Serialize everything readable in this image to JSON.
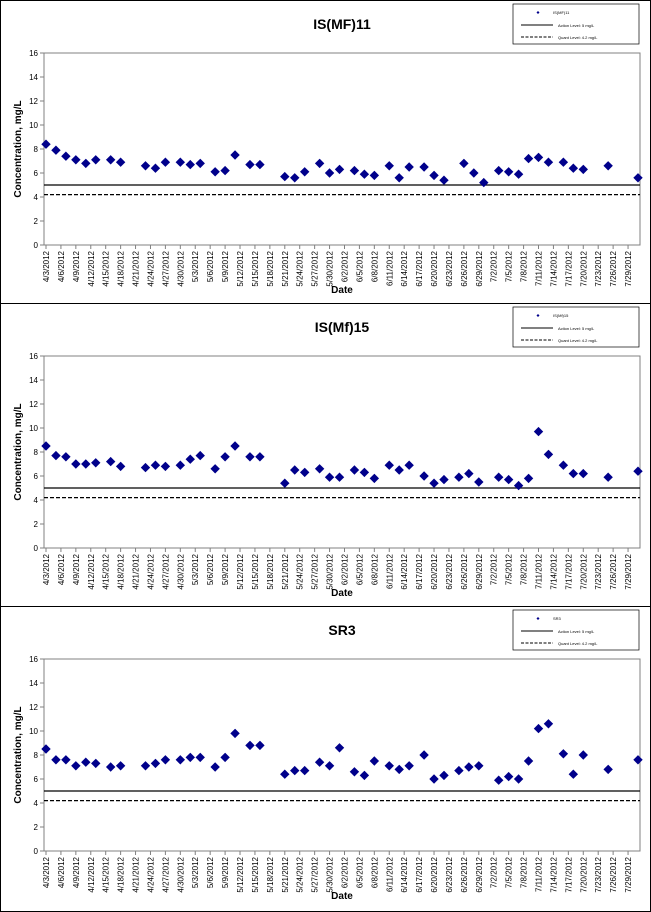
{
  "colors": {
    "marker": "#00008B",
    "line": "#000000",
    "axis": "#808080"
  },
  "chart_data": [
    {
      "type": "scatter",
      "title": "IS(MF)11",
      "xlabel": "Date",
      "ylabel": "Concentration, mg/L",
      "ylim": [
        0,
        16
      ],
      "yticks": [
        "0",
        "2",
        "4",
        "6",
        "8",
        "10",
        "12",
        "14",
        "16"
      ],
      "xlim": [
        "4/3/2012",
        "7/31/2012"
      ],
      "xtick_labels": [
        "4/3/2012",
        "4/6/2012",
        "4/9/2012",
        "4/12/2012",
        "4/15/2012",
        "4/18/2012",
        "4/21/2012",
        "4/24/2012",
        "4/27/2012",
        "4/30/2012",
        "5/3/2012",
        "5/6/2012",
        "5/9/2012",
        "5/12/2012",
        "5/15/2012",
        "5/18/2012",
        "5/21/2012",
        "5/24/2012",
        "5/27/2012",
        "5/30/2012",
        "6/2/2012",
        "6/5/2012",
        "6/8/2012",
        "6/11/2012",
        "6/14/2012",
        "6/17/2012",
        "6/20/2012",
        "6/23/2012",
        "6/26/2012",
        "6/29/2012",
        "7/2/2012",
        "7/5/2012",
        "7/8/2012",
        "7/11/2012",
        "7/14/2012",
        "7/17/2012",
        "7/20/2012",
        "7/23/2012",
        "7/26/2012",
        "7/29/2012"
      ],
      "legend": [
        "IS(MF)11",
        "Action Level: 5 mg/L",
        "Quant Level: 4.2 mg/L"
      ],
      "legend_position": "top-right",
      "lines": [
        {
          "name": "Action Level: 5 mg/L",
          "y": 5,
          "style": "solid"
        },
        {
          "name": "Quant Level: 4.2 mg/L",
          "y": 4.2,
          "style": "dashed"
        }
      ],
      "series": [
        {
          "name": "IS(MF)11",
          "points": [
            [
              "4/3/2012",
              8.4
            ],
            [
              "4/5/2012",
              7.9
            ],
            [
              "4/7/2012",
              7.4
            ],
            [
              "4/9/2012",
              7.1
            ],
            [
              "4/11/2012",
              6.8
            ],
            [
              "4/13/2012",
              7.1
            ],
            [
              "4/16/2012",
              7.1
            ],
            [
              "4/18/2012",
              6.9
            ],
            [
              "4/23/2012",
              6.6
            ],
            [
              "4/25/2012",
              6.4
            ],
            [
              "4/27/2012",
              6.9
            ],
            [
              "4/30/2012",
              6.9
            ],
            [
              "5/2/2012",
              6.7
            ],
            [
              "5/4/2012",
              6.8
            ],
            [
              "5/7/2012",
              6.1
            ],
            [
              "5/9/2012",
              6.2
            ],
            [
              "5/11/2012",
              7.5
            ],
            [
              "5/14/2012",
              6.7
            ],
            [
              "5/16/2012",
              6.7
            ],
            [
              "5/21/2012",
              5.7
            ],
            [
              "5/23/2012",
              5.6
            ],
            [
              "5/25/2012",
              6.1
            ],
            [
              "5/28/2012",
              6.8
            ],
            [
              "5/30/2012",
              6.0
            ],
            [
              "6/1/2012",
              6.3
            ],
            [
              "6/4/2012",
              6.2
            ],
            [
              "6/6/2012",
              5.9
            ],
            [
              "6/8/2012",
              5.8
            ],
            [
              "6/11/2012",
              6.6
            ],
            [
              "6/13/2012",
              5.6
            ],
            [
              "6/15/2012",
              6.5
            ],
            [
              "6/18/2012",
              6.5
            ],
            [
              "6/20/2012",
              5.8
            ],
            [
              "6/22/2012",
              5.4
            ],
            [
              "6/26/2012",
              6.8
            ],
            [
              "6/28/2012",
              6.0
            ],
            [
              "6/30/2012",
              5.2
            ],
            [
              "7/3/2012",
              6.2
            ],
            [
              "7/5/2012",
              6.1
            ],
            [
              "7/7/2012",
              5.9
            ],
            [
              "7/9/2012",
              7.2
            ],
            [
              "7/11/2012",
              7.3
            ],
            [
              "7/13/2012",
              6.9
            ],
            [
              "7/16/2012",
              6.9
            ],
            [
              "7/18/2012",
              6.4
            ],
            [
              "7/20/2012",
              6.3
            ],
            [
              "7/25/2012",
              6.6
            ],
            [
              "7/31/2012",
              5.6
            ]
          ]
        }
      ]
    },
    {
      "type": "scatter",
      "title": "IS(Mf)15",
      "xlabel": "Date",
      "ylabel": "Concentration, mg/L",
      "ylim": [
        0,
        16
      ],
      "yticks": [
        "0",
        "2",
        "4",
        "6",
        "8",
        "10",
        "12",
        "14",
        "16"
      ],
      "xlim": [
        "4/3/2012",
        "7/31/2012"
      ],
      "xtick_labels": [
        "4/3/2012",
        "4/6/2012",
        "4/9/2012",
        "4/12/2012",
        "4/15/2012",
        "4/18/2012",
        "4/21/2012",
        "4/24/2012",
        "4/27/2012",
        "4/30/2012",
        "5/3/2012",
        "5/6/2012",
        "5/9/2012",
        "5/12/2012",
        "5/15/2012",
        "5/18/2012",
        "5/21/2012",
        "5/24/2012",
        "5/27/2012",
        "5/30/2012",
        "6/2/2012",
        "6/5/2012",
        "6/8/2012",
        "6/11/2012",
        "6/14/2012",
        "6/17/2012",
        "6/20/2012",
        "6/23/2012",
        "6/26/2012",
        "6/29/2012",
        "7/2/2012",
        "7/5/2012",
        "7/8/2012",
        "7/11/2012",
        "7/14/2012",
        "7/17/2012",
        "7/20/2012",
        "7/23/2012",
        "7/26/2012",
        "7/29/2012"
      ],
      "legend": [
        "IS(Mf)15",
        "Action Level: 5 mg/L",
        "Quant Level: 4.2 mg/L"
      ],
      "legend_position": "top-right",
      "lines": [
        {
          "name": "Action Level: 5 mg/L",
          "y": 5,
          "style": "solid"
        },
        {
          "name": "Quant Level: 4.2 mg/L",
          "y": 4.2,
          "style": "dashed"
        }
      ],
      "series": [
        {
          "name": "IS(Mf)15",
          "points": [
            [
              "4/3/2012",
              8.5
            ],
            [
              "4/5/2012",
              7.7
            ],
            [
              "4/7/2012",
              7.6
            ],
            [
              "4/9/2012",
              7.0
            ],
            [
              "4/11/2012",
              7.0
            ],
            [
              "4/13/2012",
              7.1
            ],
            [
              "4/16/2012",
              7.2
            ],
            [
              "4/18/2012",
              6.8
            ],
            [
              "4/23/2012",
              6.7
            ],
            [
              "4/25/2012",
              6.9
            ],
            [
              "4/27/2012",
              6.8
            ],
            [
              "4/30/2012",
              6.9
            ],
            [
              "5/2/2012",
              7.4
            ],
            [
              "5/4/2012",
              7.7
            ],
            [
              "5/7/2012",
              6.6
            ],
            [
              "5/9/2012",
              7.6
            ],
            [
              "5/11/2012",
              8.5
            ],
            [
              "5/14/2012",
              7.6
            ],
            [
              "5/16/2012",
              7.6
            ],
            [
              "5/21/2012",
              5.4
            ],
            [
              "5/23/2012",
              6.5
            ],
            [
              "5/25/2012",
              6.3
            ],
            [
              "5/28/2012",
              6.6
            ],
            [
              "5/30/2012",
              5.9
            ],
            [
              "6/1/2012",
              5.9
            ],
            [
              "6/4/2012",
              6.5
            ],
            [
              "6/6/2012",
              6.3
            ],
            [
              "6/8/2012",
              5.8
            ],
            [
              "6/11/2012",
              6.9
            ],
            [
              "6/13/2012",
              6.5
            ],
            [
              "6/15/2012",
              6.9
            ],
            [
              "6/18/2012",
              6.0
            ],
            [
              "6/20/2012",
              5.4
            ],
            [
              "6/22/2012",
              5.7
            ],
            [
              "6/25/2012",
              5.9
            ],
            [
              "6/27/2012",
              6.2
            ],
            [
              "6/29/2012",
              5.5
            ],
            [
              "7/3/2012",
              5.9
            ],
            [
              "7/5/2012",
              5.7
            ],
            [
              "7/7/2012",
              5.2
            ],
            [
              "7/9/2012",
              5.8
            ],
            [
              "7/11/2012",
              9.7
            ],
            [
              "7/13/2012",
              7.8
            ],
            [
              "7/16/2012",
              6.9
            ],
            [
              "7/18/2012",
              6.2
            ],
            [
              "7/20/2012",
              6.2
            ],
            [
              "7/25/2012",
              5.9
            ],
            [
              "7/31/2012",
              6.4
            ]
          ]
        }
      ]
    },
    {
      "type": "scatter",
      "title": "SR3",
      "xlabel": "Date",
      "ylabel": "Concentration, mg/L",
      "ylim": [
        0,
        16
      ],
      "yticks": [
        "0",
        "2",
        "4",
        "6",
        "8",
        "10",
        "12",
        "14",
        "16"
      ],
      "xlim": [
        "4/3/2012",
        "7/31/2012"
      ],
      "xtick_labels": [
        "4/3/2012",
        "4/6/2012",
        "4/9/2012",
        "4/12/2012",
        "4/15/2012",
        "4/18/2012",
        "4/21/2012",
        "4/24/2012",
        "4/27/2012",
        "4/30/2012",
        "5/3/2012",
        "5/6/2012",
        "5/9/2012",
        "5/12/2012",
        "5/15/2012",
        "5/18/2012",
        "5/21/2012",
        "5/24/2012",
        "5/27/2012",
        "5/30/2012",
        "6/2/2012",
        "6/5/2012",
        "6/8/2012",
        "6/11/2012",
        "6/14/2012",
        "6/17/2012",
        "6/20/2012",
        "6/23/2012",
        "6/26/2012",
        "6/29/2012",
        "7/2/2012",
        "7/5/2012",
        "7/8/2012",
        "7/11/2012",
        "7/14/2012",
        "7/17/2012",
        "7/20/2012",
        "7/23/2012",
        "7/26/2012",
        "7/29/2012"
      ],
      "legend": [
        "SR3",
        "Action Level: 5 mg/L",
        "Quant Level: 4.2 mg/L"
      ],
      "legend_position": "top-right",
      "lines": [
        {
          "name": "Action Level: 5 mg/L",
          "y": 5,
          "style": "solid"
        },
        {
          "name": "Quant Level: 4.2 mg/L",
          "y": 4.2,
          "style": "dashed"
        }
      ],
      "series": [
        {
          "name": "SR3",
          "points": [
            [
              "4/3/2012",
              8.5
            ],
            [
              "4/5/2012",
              7.6
            ],
            [
              "4/7/2012",
              7.6
            ],
            [
              "4/9/2012",
              7.1
            ],
            [
              "4/11/2012",
              7.4
            ],
            [
              "4/13/2012",
              7.3
            ],
            [
              "4/16/2012",
              7.0
            ],
            [
              "4/18/2012",
              7.1
            ],
            [
              "4/23/2012",
              7.1
            ],
            [
              "4/25/2012",
              7.3
            ],
            [
              "4/27/2012",
              7.6
            ],
            [
              "4/30/2012",
              7.6
            ],
            [
              "5/2/2012",
              7.8
            ],
            [
              "5/4/2012",
              7.8
            ],
            [
              "5/7/2012",
              7.0
            ],
            [
              "5/9/2012",
              7.8
            ],
            [
              "5/11/2012",
              9.8
            ],
            [
              "5/14/2012",
              8.8
            ],
            [
              "5/16/2012",
              8.8
            ],
            [
              "5/21/2012",
              6.4
            ],
            [
              "5/23/2012",
              6.7
            ],
            [
              "5/25/2012",
              6.7
            ],
            [
              "5/28/2012",
              7.4
            ],
            [
              "5/30/2012",
              7.1
            ],
            [
              "6/1/2012",
              8.6
            ],
            [
              "6/4/2012",
              6.6
            ],
            [
              "6/6/2012",
              6.3
            ],
            [
              "6/8/2012",
              7.5
            ],
            [
              "6/11/2012",
              7.1
            ],
            [
              "6/13/2012",
              6.8
            ],
            [
              "6/15/2012",
              7.1
            ],
            [
              "6/18/2012",
              8.0
            ],
            [
              "6/20/2012",
              6.0
            ],
            [
              "6/22/2012",
              6.3
            ],
            [
              "6/25/2012",
              6.7
            ],
            [
              "6/27/2012",
              7.0
            ],
            [
              "6/29/2012",
              7.1
            ],
            [
              "7/3/2012",
              5.9
            ],
            [
              "7/5/2012",
              6.2
            ],
            [
              "7/7/2012",
              6.0
            ],
            [
              "7/9/2012",
              7.5
            ],
            [
              "7/11/2012",
              10.2
            ],
            [
              "7/13/2012",
              10.6
            ],
            [
              "7/16/2012",
              8.1
            ],
            [
              "7/18/2012",
              6.4
            ],
            [
              "7/20/2012",
              8.0
            ],
            [
              "7/25/2012",
              6.8
            ],
            [
              "7/31/2012",
              7.6
            ]
          ]
        }
      ]
    }
  ]
}
